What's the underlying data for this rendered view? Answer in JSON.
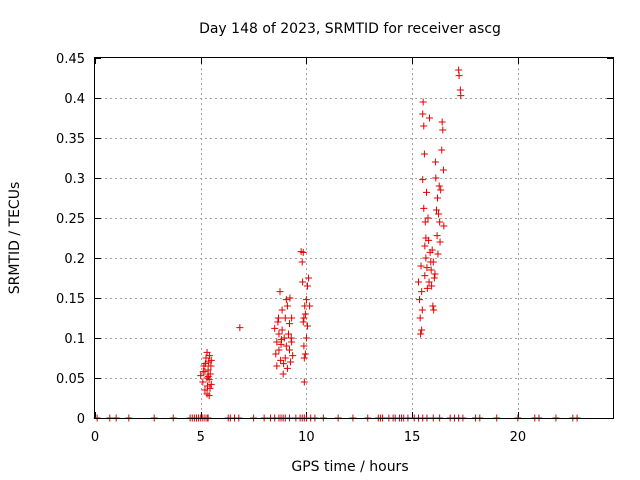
{
  "chart_data": {
    "type": "scatter",
    "title": "Day 148 of 2023, SRMTID for receiver ascg",
    "xlabel": "GPS time / hours",
    "ylabel": "SRMTID / TECUs",
    "xlim": [
      0,
      24.5
    ],
    "ylim": [
      0,
      0.45
    ],
    "grid": true,
    "xticks": [
      0,
      5,
      10,
      15,
      20
    ],
    "xtick_labels": [
      "0",
      "5",
      "10",
      "15",
      "20"
    ],
    "yticks": [
      0,
      0.05,
      0.1,
      0.15,
      0.2,
      0.25,
      0.3,
      0.35,
      0.4,
      0.45
    ],
    "ytick_labels": [
      "0",
      "0.05",
      "0.1",
      "0.15",
      "0.2",
      "0.25",
      "0.3",
      "0.35",
      "0.4",
      "0.45"
    ],
    "marker": "+",
    "color": "#e00000",
    "series": [
      {
        "name": "SRMTID",
        "points": [
          [
            0.1,
            0
          ],
          [
            0.7,
            0
          ],
          [
            1.0,
            0
          ],
          [
            1.6,
            0
          ],
          [
            2.8,
            0
          ],
          [
            3.7,
            0
          ],
          [
            4.5,
            0
          ],
          [
            4.6,
            0
          ],
          [
            4.7,
            0
          ],
          [
            4.8,
            0
          ],
          [
            4.9,
            0
          ],
          [
            5.0,
            0
          ],
          [
            5.1,
            0
          ],
          [
            5.2,
            0
          ],
          [
            5.3,
            0
          ],
          [
            5.35,
            0
          ],
          [
            6.3,
            0
          ],
          [
            6.4,
            0
          ],
          [
            6.6,
            0
          ],
          [
            6.8,
            0
          ],
          [
            7.5,
            0
          ],
          [
            8.0,
            0
          ],
          [
            8.3,
            0
          ],
          [
            8.5,
            0
          ],
          [
            8.7,
            0
          ],
          [
            8.8,
            0
          ],
          [
            8.9,
            0
          ],
          [
            9.0,
            0
          ],
          [
            9.2,
            0
          ],
          [
            9.5,
            0
          ],
          [
            9.7,
            0
          ],
          [
            9.8,
            0
          ],
          [
            9.9,
            0
          ],
          [
            10.0,
            0
          ],
          [
            10.2,
            0
          ],
          [
            10.4,
            0
          ],
          [
            10.8,
            0
          ],
          [
            11.5,
            0
          ],
          [
            12.2,
            0
          ],
          [
            12.9,
            0
          ],
          [
            13.4,
            0
          ],
          [
            13.5,
            0
          ],
          [
            13.6,
            0
          ],
          [
            13.9,
            0
          ],
          [
            14.1,
            0
          ],
          [
            14.2,
            0
          ],
          [
            14.4,
            0
          ],
          [
            14.5,
            0
          ],
          [
            14.6,
            0
          ],
          [
            14.8,
            0
          ],
          [
            15.1,
            0
          ],
          [
            15.3,
            0
          ],
          [
            15.5,
            0
          ],
          [
            15.7,
            0
          ],
          [
            16.0,
            0
          ],
          [
            16.3,
            0
          ],
          [
            16.8,
            0
          ],
          [
            17.0,
            0
          ],
          [
            17.2,
            0
          ],
          [
            17.4,
            0
          ],
          [
            18.0,
            0
          ],
          [
            18.2,
            0
          ],
          [
            19.0,
            0
          ],
          [
            20.0,
            0
          ],
          [
            20.8,
            0
          ],
          [
            21.0,
            0
          ],
          [
            21.8,
            0
          ],
          [
            22.6,
            0
          ],
          [
            22.8,
            0
          ],
          [
            5.0,
            0.053
          ],
          [
            5.1,
            0.045
          ],
          [
            5.15,
            0.065
          ],
          [
            5.2,
            0.035
          ],
          [
            5.2,
            0.058
          ],
          [
            5.25,
            0.075
          ],
          [
            5.3,
            0.05
          ],
          [
            5.3,
            0.082
          ],
          [
            5.32,
            0.04
          ],
          [
            5.35,
            0.06
          ],
          [
            5.38,
            0.07
          ],
          [
            5.4,
            0.028
          ],
          [
            5.4,
            0.048
          ],
          [
            5.42,
            0.078
          ],
          [
            5.45,
            0.055
          ],
          [
            5.48,
            0.065
          ],
          [
            5.5,
            0.072
          ],
          [
            5.5,
            0.042
          ],
          [
            5.3,
            0.03
          ],
          [
            5.22,
            0.068
          ],
          [
            5.12,
            0.058
          ],
          [
            5.36,
            0.052
          ],
          [
            5.44,
            0.037
          ],
          [
            6.85,
            0.113
          ],
          [
            8.5,
            0.112
          ],
          [
            8.55,
            0.08
          ],
          [
            8.6,
            0.065
          ],
          [
            8.6,
            0.095
          ],
          [
            8.65,
            0.12
          ],
          [
            8.7,
            0.105
          ],
          [
            8.7,
            0.085
          ],
          [
            8.75,
            0.158
          ],
          [
            8.78,
            0.072
          ],
          [
            8.8,
            0.092
          ],
          [
            8.85,
            0.135
          ],
          [
            8.85,
            0.11
          ],
          [
            8.9,
            0.055
          ],
          [
            8.95,
            0.1
          ],
          [
            9.0,
            0.125
          ],
          [
            9.0,
            0.075
          ],
          [
            9.05,
            0.09
          ],
          [
            9.1,
            0.14
          ],
          [
            9.1,
            0.062
          ],
          [
            9.15,
            0.105
          ],
          [
            9.2,
            0.085
          ],
          [
            9.2,
            0.118
          ],
          [
            9.25,
            0.07
          ],
          [
            9.3,
            0.095
          ],
          [
            9.3,
            0.125
          ],
          [
            9.35,
            0.078
          ],
          [
            9.05,
            0.148
          ],
          [
            8.92,
            0.068
          ],
          [
            8.68,
            0.125
          ],
          [
            9.22,
            0.15
          ],
          [
            9.28,
            0.1
          ],
          [
            8.82,
            0.098
          ],
          [
            9.75,
            0.208
          ],
          [
            9.8,
            0.195
          ],
          [
            9.82,
            0.17
          ],
          [
            9.85,
            0.12
          ],
          [
            9.88,
            0.09
          ],
          [
            9.9,
            0.075
          ],
          [
            9.92,
            0.14
          ],
          [
            9.95,
            0.13
          ],
          [
            10.0,
            0.148
          ],
          [
            10.05,
            0.115
          ],
          [
            10.1,
            0.175
          ],
          [
            10.15,
            0.14
          ],
          [
            9.9,
            0.045
          ],
          [
            9.85,
            0.207
          ],
          [
            10.0,
            0.1
          ],
          [
            9.95,
            0.08
          ],
          [
            10.05,
            0.165
          ],
          [
            9.88,
            0.125
          ],
          [
            15.3,
            0.17
          ],
          [
            15.35,
            0.148
          ],
          [
            15.38,
            0.125
          ],
          [
            15.4,
            0.105
          ],
          [
            15.42,
            0.19
          ],
          [
            15.45,
            0.158
          ],
          [
            15.48,
            0.135
          ],
          [
            15.5,
            0.38
          ],
          [
            15.5,
            0.298
          ],
          [
            15.52,
            0.395
          ],
          [
            15.55,
            0.365
          ],
          [
            15.55,
            0.262
          ],
          [
            15.58,
            0.33
          ],
          [
            15.6,
            0.178
          ],
          [
            15.6,
            0.215
          ],
          [
            15.62,
            0.245
          ],
          [
            15.65,
            0.2
          ],
          [
            15.68,
            0.282
          ],
          [
            15.7,
            0.188
          ],
          [
            15.72,
            0.162
          ],
          [
            15.75,
            0.25
          ],
          [
            15.78,
            0.222
          ],
          [
            15.8,
            0.17
          ],
          [
            15.82,
            0.375
          ],
          [
            15.85,
            0.207
          ],
          [
            15.88,
            0.195
          ],
          [
            15.9,
            0.185
          ],
          [
            15.92,
            0.165
          ],
          [
            15.95,
            0.21
          ],
          [
            15.98,
            0.14
          ],
          [
            16.0,
            0.195
          ],
          [
            16.02,
            0.135
          ],
          [
            16.05,
            0.175
          ],
          [
            16.1,
            0.32
          ],
          [
            16.12,
            0.3
          ],
          [
            16.15,
            0.26
          ],
          [
            16.18,
            0.228
          ],
          [
            16.2,
            0.275
          ],
          [
            16.25,
            0.255
          ],
          [
            16.28,
            0.29
          ],
          [
            16.3,
            0.245
          ],
          [
            16.32,
            0.22
          ],
          [
            16.35,
            0.285
          ],
          [
            16.4,
            0.335
          ],
          [
            16.42,
            0.37
          ],
          [
            16.45,
            0.36
          ],
          [
            16.48,
            0.31
          ],
          [
            16.5,
            0.24
          ],
          [
            15.45,
            0.11
          ],
          [
            15.65,
            0.225
          ],
          [
            16.08,
            0.18
          ],
          [
            16.22,
            0.205
          ],
          [
            17.2,
            0.435
          ],
          [
            17.22,
            0.428
          ],
          [
            17.28,
            0.41
          ],
          [
            17.3,
            0.403
          ]
        ]
      }
    ]
  }
}
